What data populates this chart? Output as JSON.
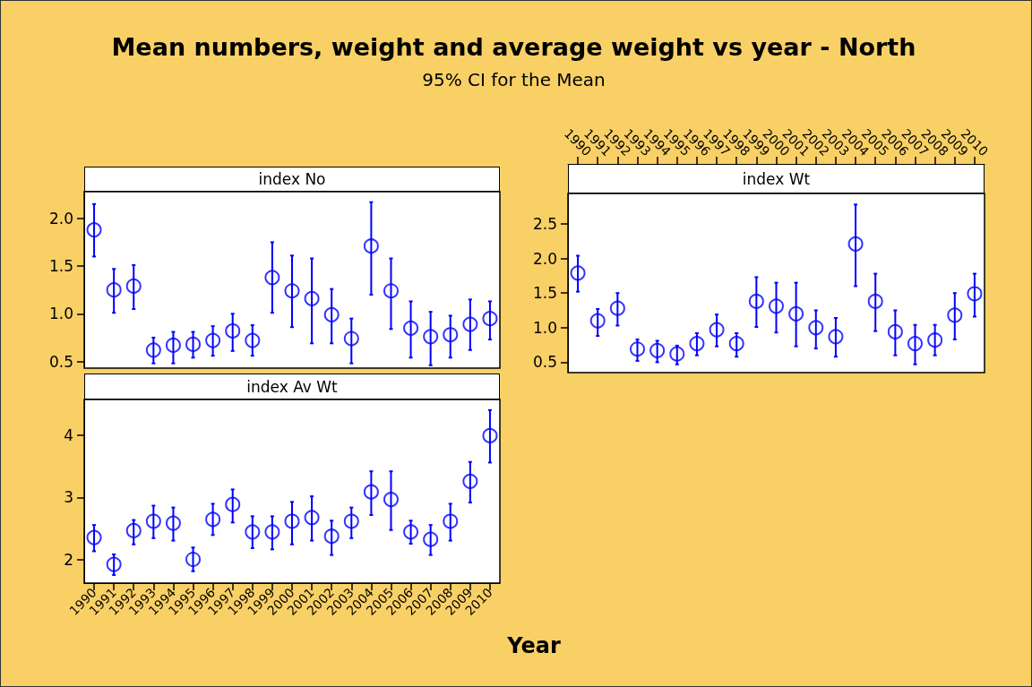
{
  "chart_data": [
    {
      "type": "scatter",
      "title": "Mean numbers, weight and average weight vs year - North",
      "subtitle": "95% CI for the Mean",
      "annotations": [
        "index No"
      ],
      "categories": [
        "1990",
        "1991",
        "1992",
        "1993",
        "1994",
        "1995",
        "1996",
        "1997",
        "1998",
        "1999",
        "2000",
        "2001",
        "2002",
        "2003",
        "2004",
        "2005",
        "2006",
        "2007",
        "2008",
        "2009",
        "2010"
      ],
      "series": [
        {
          "color": "#0000ff",
          "values": [
            1.88,
            1.25,
            1.29,
            0.62,
            0.67,
            0.68,
            0.72,
            0.82,
            0.72,
            1.38,
            1.24,
            1.16,
            0.99,
            0.74,
            1.71,
            1.24,
            0.85,
            0.76,
            0.78,
            0.89,
            0.95
          ],
          "errors": [
            [
              1.6,
              2.15
            ],
            [
              1.01,
              1.47
            ],
            [
              1.05,
              1.51
            ],
            [
              0.48,
              0.75
            ],
            [
              0.48,
              0.81
            ],
            [
              0.54,
              0.81
            ],
            [
              0.56,
              0.87
            ],
            [
              0.61,
              1.0
            ],
            [
              0.56,
              0.88
            ],
            [
              1.01,
              1.75
            ],
            [
              0.86,
              1.61
            ],
            [
              0.69,
              1.58
            ],
            [
              0.69,
              1.26
            ],
            [
              0.48,
              0.95
            ],
            [
              1.2,
              2.17
            ],
            [
              0.84,
              1.58
            ],
            [
              0.54,
              1.13
            ],
            [
              0.46,
              1.02
            ],
            [
              0.54,
              0.98
            ],
            [
              0.62,
              1.15
            ],
            [
              0.73,
              1.13
            ]
          ]
        }
      ],
      "ylim": [
        0.43,
        2.28
      ],
      "yticks": [
        {
          "value": 0.5,
          "label": "0.5"
        },
        {
          "value": 1,
          "label": "1.0"
        },
        {
          "value": 1.5,
          "label": "1.5"
        },
        {
          "value": 2,
          "label": "2.0"
        }
      ],
      "tick_labels": "y",
      "marker": "circle",
      "grid": false
    },
    {
      "type": "scatter",
      "annotations": [
        "index Wt"
      ],
      "categories": [
        "1990",
        "1991",
        "1992",
        "1993",
        "1994",
        "1995",
        "1996",
        "1997",
        "1998",
        "1999",
        "2000",
        "2001",
        "2002",
        "2003",
        "2004",
        "2005",
        "2006",
        "2007",
        "2008",
        "2009",
        "2010"
      ],
      "series": [
        {
          "color": "#0000ff",
          "values": [
            1.79,
            1.1,
            1.28,
            0.69,
            0.67,
            0.62,
            0.77,
            0.97,
            0.77,
            1.38,
            1.31,
            1.2,
            1.0,
            0.87,
            2.21,
            1.38,
            0.94,
            0.77,
            0.82,
            1.18,
            1.49
          ],
          "errors": [
            [
              1.52,
              2.04
            ],
            [
              0.88,
              1.27
            ],
            [
              1.03,
              1.5
            ],
            [
              0.52,
              0.83
            ],
            [
              0.5,
              0.81
            ],
            [
              0.47,
              0.74
            ],
            [
              0.6,
              0.92
            ],
            [
              0.73,
              1.19
            ],
            [
              0.58,
              0.92
            ],
            [
              1.01,
              1.73
            ],
            [
              0.93,
              1.65
            ],
            [
              0.73,
              1.65
            ],
            [
              0.7,
              1.25
            ],
            [
              0.58,
              1.14
            ],
            [
              1.6,
              2.78
            ],
            [
              0.95,
              1.78
            ],
            [
              0.6,
              1.25
            ],
            [
              0.47,
              1.04
            ],
            [
              0.6,
              1.04
            ],
            [
              0.83,
              1.5
            ],
            [
              1.16,
              1.78
            ]
          ]
        }
      ],
      "ylim": [
        0.35,
        2.94
      ],
      "yticks": [
        {
          "value": 0.5,
          "label": "0.5"
        },
        {
          "value": 1,
          "label": "1.0"
        },
        {
          "value": 1.5,
          "label": "1.5"
        },
        {
          "value": 2,
          "label": "2.0"
        },
        {
          "value": 2.5,
          "label": "2.5"
        }
      ],
      "marker": "circle",
      "grid": false
    },
    {
      "type": "scatter",
      "xlabel": "Year",
      "annotations": [
        "index Av Wt"
      ],
      "categories": [
        "1990",
        "1991",
        "1992",
        "1993",
        "1994",
        "1995",
        "1996",
        "1997",
        "1998",
        "1999",
        "2000",
        "2001",
        "2002",
        "2003",
        "2004",
        "2005",
        "2006",
        "2007",
        "2008",
        "2009",
        "2010"
      ],
      "series": [
        {
          "color": "#0000ff",
          "values": [
            2.36,
            1.93,
            2.47,
            2.62,
            2.59,
            2.01,
            2.65,
            2.89,
            2.45,
            2.45,
            2.62,
            2.68,
            2.38,
            2.62,
            3.09,
            2.97,
            2.45,
            2.33,
            2.62,
            3.26,
            3.99
          ],
          "errors": [
            [
              2.14,
              2.56
            ],
            [
              1.76,
              2.09
            ],
            [
              2.25,
              2.64
            ],
            [
              2.35,
              2.87
            ],
            [
              2.31,
              2.84
            ],
            [
              1.82,
              2.2
            ],
            [
              2.4,
              2.9
            ],
            [
              2.6,
              3.13
            ],
            [
              2.19,
              2.7
            ],
            [
              2.17,
              2.7
            ],
            [
              2.25,
              2.93
            ],
            [
              2.31,
              3.02
            ],
            [
              2.08,
              2.63
            ],
            [
              2.35,
              2.84
            ],
            [
              2.72,
              3.42
            ],
            [
              2.48,
              3.42
            ],
            [
              2.26,
              2.63
            ],
            [
              2.08,
              2.56
            ],
            [
              2.31,
              2.9
            ],
            [
              2.92,
              3.57
            ],
            [
              3.56,
              4.4
            ]
          ]
        }
      ],
      "ylim": [
        1.63,
        4.57
      ],
      "yticks": [
        2,
        3,
        4
      ],
      "marker": "circle",
      "grid": false
    }
  ]
}
